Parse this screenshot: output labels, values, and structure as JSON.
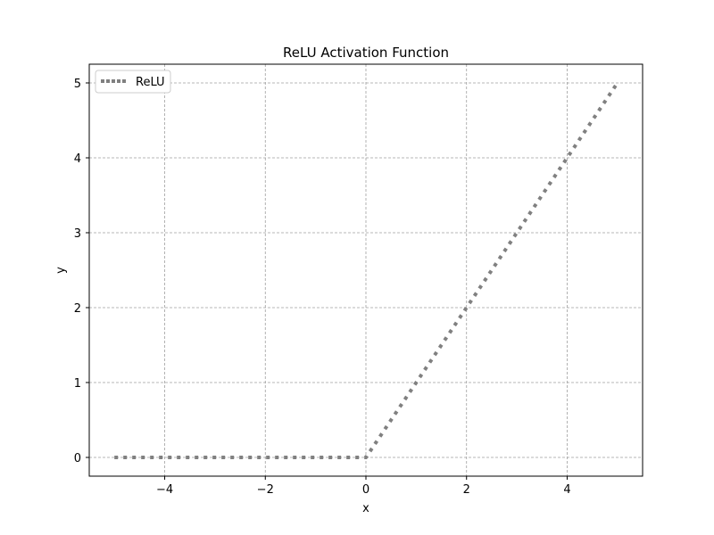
{
  "chart_data": {
    "type": "line",
    "title": "ReLU Activation Function",
    "xlabel": "x",
    "ylabel": "y",
    "xlim": [
      -5.5,
      5.5
    ],
    "ylim": [
      -0.25,
      5.25
    ],
    "x_ticks": [
      -4,
      -2,
      0,
      2,
      4
    ],
    "x_tick_labels": [
      "−4",
      "−2",
      "0",
      "2",
      "4"
    ],
    "y_ticks": [
      0,
      1,
      2,
      3,
      4,
      5
    ],
    "y_tick_labels": [
      "0",
      "1",
      "2",
      "3",
      "4",
      "5"
    ],
    "grid": true,
    "legend_position": "top-left",
    "series": [
      {
        "name": "ReLU",
        "color": "#808080",
        "line_style": "dotted",
        "x": [
          -5,
          -4,
          -3,
          -2,
          -1,
          0,
          1,
          2,
          3,
          4,
          5
        ],
        "y": [
          0,
          0,
          0,
          0,
          0,
          0,
          1,
          2,
          3,
          4,
          5
        ]
      }
    ]
  }
}
